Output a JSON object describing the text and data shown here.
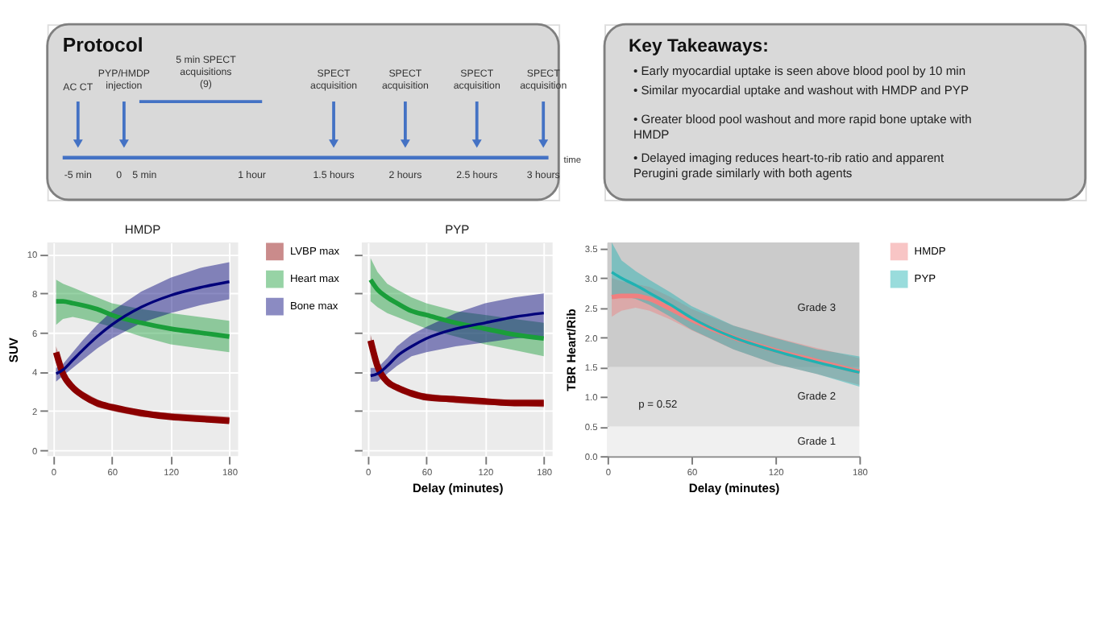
{
  "chart_data": [
    {
      "type": "other",
      "title": "Protocol",
      "annotations": [
        "AC CT",
        "PYP/HMDP injection",
        "5 min SPECT acquisitions (9)",
        "SPECT acquisition",
        "SPECT acquisition",
        "SPECT acquisition",
        "SPECT acquisition",
        "-5 min",
        "0",
        "5 min",
        "1 hour",
        "1.5 hours",
        "2 hours",
        "2.5 hours",
        "3 hours",
        "time"
      ]
    },
    {
      "type": "other",
      "title": "Key Takeaways:",
      "annotations": [
        "• Early myocardial uptake is seen above blood pool by 10 min",
        "• Similar myocardial uptake and washout with HMDP and PYP",
        "• Greater blood pool washout and more rapid bone uptake with HMDP",
        "• Delayed imaging reduces heart-to-rib ratio and apparent Perugini grade similarly with both agents"
      ]
    },
    {
      "type": "line",
      "title": "HMDP",
      "ylabel": "SUV",
      "x": [
        3,
        10,
        20,
        30,
        45,
        60,
        90,
        120,
        150,
        180
      ],
      "xlim": [
        -6,
        189
      ],
      "ylim": [
        -0.3,
        10.6
      ],
      "xticks": [
        0,
        60,
        120,
        180
      ],
      "yticks": [
        0,
        2,
        4,
        6,
        8,
        10
      ],
      "grid": true,
      "legend": "right",
      "series": [
        {
          "name": "LVBP max",
          "color": "#8b0000",
          "values": [
            5.0,
            3.9,
            3.2,
            2.8,
            2.4,
            2.2,
            1.9,
            1.7,
            1.6,
            1.5
          ],
          "lower": [
            4.7,
            3.7,
            3.0,
            2.6,
            2.2,
            2.0,
            1.7,
            1.6,
            1.5,
            1.4
          ],
          "upper": [
            5.3,
            4.1,
            3.4,
            3.0,
            2.6,
            2.3,
            2.0,
            1.9,
            1.8,
            1.7
          ]
        },
        {
          "name": "Heart max",
          "color": "#1a9e3a",
          "values": [
            7.6,
            7.6,
            7.5,
            7.4,
            7.2,
            6.9,
            6.5,
            6.2,
            6.0,
            5.8
          ],
          "lower": [
            6.4,
            6.7,
            6.8,
            6.7,
            6.5,
            6.3,
            5.8,
            5.4,
            5.2,
            5.0
          ],
          "upper": [
            8.7,
            8.5,
            8.3,
            8.1,
            7.8,
            7.5,
            7.2,
            7.0,
            6.8,
            6.6
          ]
        },
        {
          "name": "Bone max",
          "color": "#00007a",
          "values": [
            3.9,
            4.1,
            4.6,
            5.1,
            5.8,
            6.4,
            7.3,
            7.9,
            8.3,
            8.6
          ],
          "lower": [
            3.5,
            3.8,
            4.2,
            4.6,
            5.2,
            5.7,
            6.5,
            7.0,
            7.4,
            7.7
          ],
          "upper": [
            4.2,
            4.4,
            5.0,
            5.6,
            6.4,
            7.1,
            8.1,
            8.8,
            9.3,
            9.6
          ]
        }
      ]
    },
    {
      "type": "line",
      "title": "PYP",
      "xlabel": "Delay (minutes)",
      "x": [
        3,
        10,
        20,
        30,
        45,
        60,
        90,
        120,
        150,
        180
      ],
      "xlim": [
        -6,
        189
      ],
      "ylim": [
        -0.3,
        10.6
      ],
      "xticks": [
        0,
        60,
        120,
        180
      ],
      "yticks": [
        0,
        2,
        4,
        6,
        8,
        10
      ],
      "grid": true,
      "tick_labels": "x",
      "series": [
        {
          "color": "#8b0000",
          "values": [
            5.6,
            4.3,
            3.5,
            3.2,
            2.9,
            2.7,
            2.6,
            2.5,
            2.4,
            2.4
          ],
          "lower": [
            5.3,
            4.1,
            3.3,
            3.0,
            2.7,
            2.6,
            2.4,
            2.3,
            2.3,
            2.2
          ],
          "upper": [
            5.9,
            4.5,
            3.7,
            3.3,
            3.0,
            2.9,
            2.7,
            2.6,
            2.6,
            2.6
          ]
        },
        {
          "color": "#1a9e3a",
          "values": [
            8.7,
            8.2,
            7.8,
            7.5,
            7.1,
            6.9,
            6.5,
            6.2,
            5.9,
            5.7
          ],
          "lower": [
            7.6,
            7.3,
            7.0,
            6.8,
            6.5,
            6.2,
            5.8,
            5.4,
            5.1,
            4.8
          ],
          "upper": [
            9.8,
            9.1,
            8.5,
            8.2,
            7.8,
            7.5,
            7.1,
            6.9,
            6.7,
            6.5
          ]
        },
        {
          "color": "#00007a",
          "values": [
            3.8,
            3.9,
            4.3,
            4.8,
            5.3,
            5.7,
            6.2,
            6.5,
            6.8,
            7.0
          ],
          "lower": [
            3.5,
            3.5,
            3.9,
            4.3,
            4.8,
            5.0,
            5.3,
            5.5,
            5.7,
            5.8
          ],
          "upper": [
            4.2,
            4.2,
            4.7,
            5.3,
            5.9,
            6.3,
            7.0,
            7.5,
            7.8,
            8.0
          ]
        }
      ]
    },
    {
      "type": "line",
      "xlabel": "Delay (minutes)",
      "ylabel": "TBR Heart/Rib",
      "x": [
        3,
        10,
        20,
        30,
        45,
        60,
        90,
        120,
        150,
        180
      ],
      "xlim": [
        0,
        180
      ],
      "ylim": [
        0,
        3.6
      ],
      "xticks": [
        0,
        60,
        120,
        180
      ],
      "yticks": [
        {
          "value": 0,
          "label": "0.0"
        },
        0.5,
        {
          "value": 1,
          "label": "1.0"
        },
        1.5,
        {
          "value": 2,
          "label": "2.0"
        },
        2.5,
        {
          "value": 3,
          "label": "3.0"
        },
        3.5
      ],
      "legend": "right",
      "bands": [
        {
          "axis": "y",
          "from": 0,
          "to": 0.5,
          "label": "Grade 1",
          "color": "#f0f0f0"
        },
        {
          "axis": "y",
          "from": 0.5,
          "to": 1.5,
          "label": "Grade 2",
          "color": "#dedede"
        },
        {
          "axis": "y",
          "from": 1.5,
          "to": 3.6,
          "label": "Grade 3",
          "color": "#cbcbcb"
        }
      ],
      "annotations": [
        "p = 0.52"
      ],
      "series": [
        {
          "name": "HMDP",
          "color": "#f08080",
          "values": [
            2.68,
            2.7,
            2.7,
            2.65,
            2.48,
            2.3,
            2.0,
            1.78,
            1.6,
            1.42
          ],
          "lower": [
            2.35,
            2.45,
            2.5,
            2.45,
            2.3,
            2.12,
            1.8,
            1.55,
            1.38,
            1.2
          ],
          "upper": [
            3.0,
            2.95,
            2.9,
            2.85,
            2.68,
            2.48,
            2.2,
            2.0,
            1.82,
            1.65
          ]
        },
        {
          "name": "PYP",
          "color": "#20b2b2",
          "values": [
            3.1,
            3.0,
            2.88,
            2.75,
            2.55,
            2.33,
            2.0,
            1.77,
            1.58,
            1.41
          ],
          "lower": [
            2.65,
            2.7,
            2.65,
            2.55,
            2.35,
            2.13,
            1.8,
            1.55,
            1.38,
            1.17
          ],
          "upper": [
            3.6,
            3.3,
            3.12,
            2.97,
            2.76,
            2.53,
            2.2,
            1.99,
            1.8,
            1.68
          ]
        }
      ]
    }
  ]
}
